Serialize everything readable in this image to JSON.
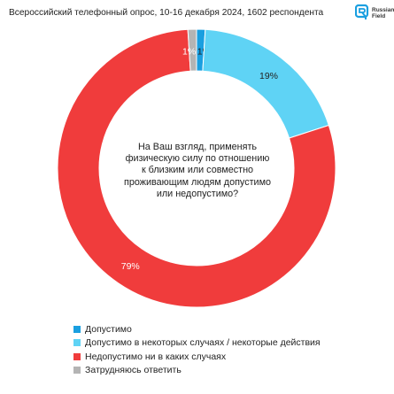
{
  "header": {
    "subtitle": "Всероссийский телефонный опрос, 10-16 декабря 2024, 1602 респондента",
    "logo_text": "Russian Field",
    "logo_icon": "russian-field-logo-icon"
  },
  "chart_data": {
    "type": "pie",
    "subtype": "donut",
    "center_text": "На Ваш взгляд, применять физическую силу по отношению к близким или совместно проживающим людям допустимо или недопустимо?",
    "categories": [
      "Допустимо",
      "Допустимо в некоторых случаях / некоторые действия",
      "Недопустимо ни в каких случаях",
      "Затрудняюсь ответить"
    ],
    "values": [
      1,
      19,
      79,
      1
    ],
    "labels": [
      "1%",
      "19%",
      "79%",
      "1%"
    ],
    "colors": [
      "#1a9fe0",
      "#5fd3f5",
      "#f03c3c",
      "#b4b4b4"
    ],
    "legend_position": "bottom-left"
  }
}
